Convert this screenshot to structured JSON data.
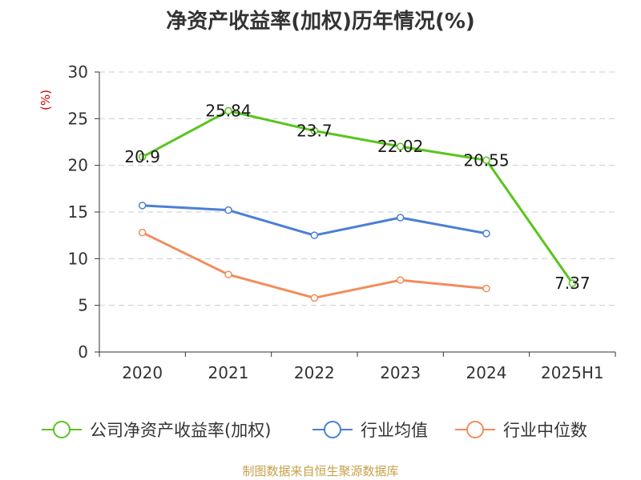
{
  "title": "净资产收益率(加权)历年情况(%)",
  "source": "制图数据来自恒生聚源数据库",
  "colors": {
    "company": "#5ac41e",
    "industry_avg": "#4a7fd6",
    "industry_median": "#f28c5a",
    "unit": "#cc0000",
    "source": "#c7a04a",
    "grid": "#cccccc",
    "axis": "#333333"
  },
  "chart_data": {
    "type": "line",
    "title": "净资产收益率(加权)历年情况(%)",
    "ylabel": "(%)",
    "xlabel": "",
    "categories": [
      "2020",
      "2021",
      "2022",
      "2023",
      "2024",
      "2025H1"
    ],
    "ylim": [
      0,
      30
    ],
    "yticks": [
      0,
      5,
      10,
      15,
      20,
      25,
      30
    ],
    "grid": true,
    "legend_position": "bottom",
    "series": [
      {
        "name": "公司净资产收益率(加权)",
        "values": [
          20.9,
          25.84,
          23.7,
          22.02,
          20.55,
          7.37
        ],
        "labels": [
          "20.9",
          "25.84",
          "23.7",
          "22.02",
          "20.55",
          "7.37"
        ]
      },
      {
        "name": "行业均值",
        "values": [
          15.7,
          15.2,
          12.5,
          14.4,
          12.7,
          null
        ]
      },
      {
        "name": "行业中位数",
        "values": [
          12.8,
          8.3,
          5.8,
          7.7,
          6.8,
          null
        ]
      }
    ]
  }
}
